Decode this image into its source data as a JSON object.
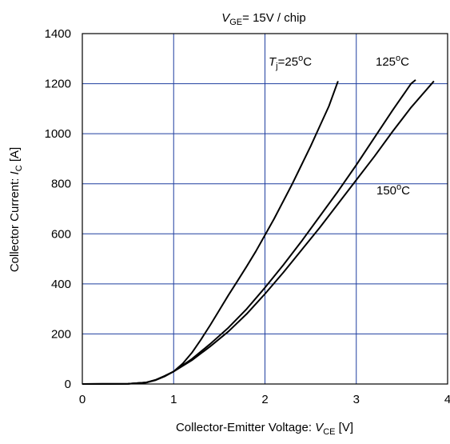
{
  "chart_data": {
    "type": "line",
    "title": {
      "var": "V",
      "sub": "GE",
      "rest": "= 15V / chip"
    },
    "xlabel": {
      "text": "Collector-Emitter Voltage: ",
      "var": "V",
      "sub": "CE",
      "unit": " [V]"
    },
    "ylabel": {
      "text": "Collector Current: ",
      "var": "I",
      "sub": "C",
      "unit": " [A]"
    },
    "xlim": [
      0,
      4
    ],
    "ylim": [
      0,
      1400
    ],
    "xticks": [
      0,
      1,
      2,
      3,
      4
    ],
    "yticks": [
      0,
      200,
      400,
      600,
      800,
      1000,
      1200,
      1400
    ],
    "grid": true,
    "line_color": "#000000",
    "grid_color": "#1f3f9f",
    "series": [
      {
        "name": "25°C",
        "label": {
          "var": "T",
          "sub": "j",
          "rest": "=25",
          "sup": "o",
          "unit": "C"
        },
        "points": [
          [
            0,
            0
          ],
          [
            0.5,
            1
          ],
          [
            0.7,
            6
          ],
          [
            0.8,
            15
          ],
          [
            0.9,
            30
          ],
          [
            1.0,
            50
          ],
          [
            1.1,
            82
          ],
          [
            1.2,
            125
          ],
          [
            1.3,
            178
          ],
          [
            1.4,
            235
          ],
          [
            1.5,
            295
          ],
          [
            1.6,
            355
          ],
          [
            1.7,
            412
          ],
          [
            1.8,
            470
          ],
          [
            1.9,
            530
          ],
          [
            2.0,
            595
          ],
          [
            2.1,
            660
          ],
          [
            2.2,
            730
          ],
          [
            2.3,
            800
          ],
          [
            2.4,
            875
          ],
          [
            2.5,
            950
          ],
          [
            2.6,
            1030
          ],
          [
            2.7,
            1110
          ],
          [
            2.8,
            1210
          ]
        ]
      },
      {
        "name": "125°C",
        "label": {
          "var": "",
          "sub": "",
          "rest": "125",
          "sup": "o",
          "unit": "C"
        },
        "points": [
          [
            0,
            0
          ],
          [
            0.5,
            1
          ],
          [
            0.7,
            6
          ],
          [
            0.8,
            16
          ],
          [
            0.9,
            32
          ],
          [
            1.0,
            50
          ],
          [
            1.2,
            100
          ],
          [
            1.4,
            160
          ],
          [
            1.6,
            225
          ],
          [
            1.8,
            300
          ],
          [
            2.0,
            385
          ],
          [
            2.2,
            475
          ],
          [
            2.4,
            570
          ],
          [
            2.6,
            670
          ],
          [
            2.8,
            770
          ],
          [
            3.0,
            875
          ],
          [
            3.2,
            985
          ],
          [
            3.4,
            1095
          ],
          [
            3.6,
            1200
          ],
          [
            3.65,
            1215
          ]
        ]
      },
      {
        "name": "150°C",
        "label": {
          "var": "",
          "sub": "",
          "rest": "150",
          "sup": "o",
          "unit": "C"
        },
        "points": [
          [
            0,
            0
          ],
          [
            0.5,
            1
          ],
          [
            0.7,
            6
          ],
          [
            0.8,
            16
          ],
          [
            0.9,
            32
          ],
          [
            1.0,
            50
          ],
          [
            1.2,
            95
          ],
          [
            1.4,
            150
          ],
          [
            1.6,
            210
          ],
          [
            1.8,
            280
          ],
          [
            2.0,
            360
          ],
          [
            2.2,
            445
          ],
          [
            2.4,
            535
          ],
          [
            2.6,
            625
          ],
          [
            2.8,
            720
          ],
          [
            3.0,
            815
          ],
          [
            3.2,
            910
          ],
          [
            3.4,
            1010
          ],
          [
            3.6,
            1105
          ],
          [
            3.85,
            1210
          ]
        ]
      }
    ]
  }
}
